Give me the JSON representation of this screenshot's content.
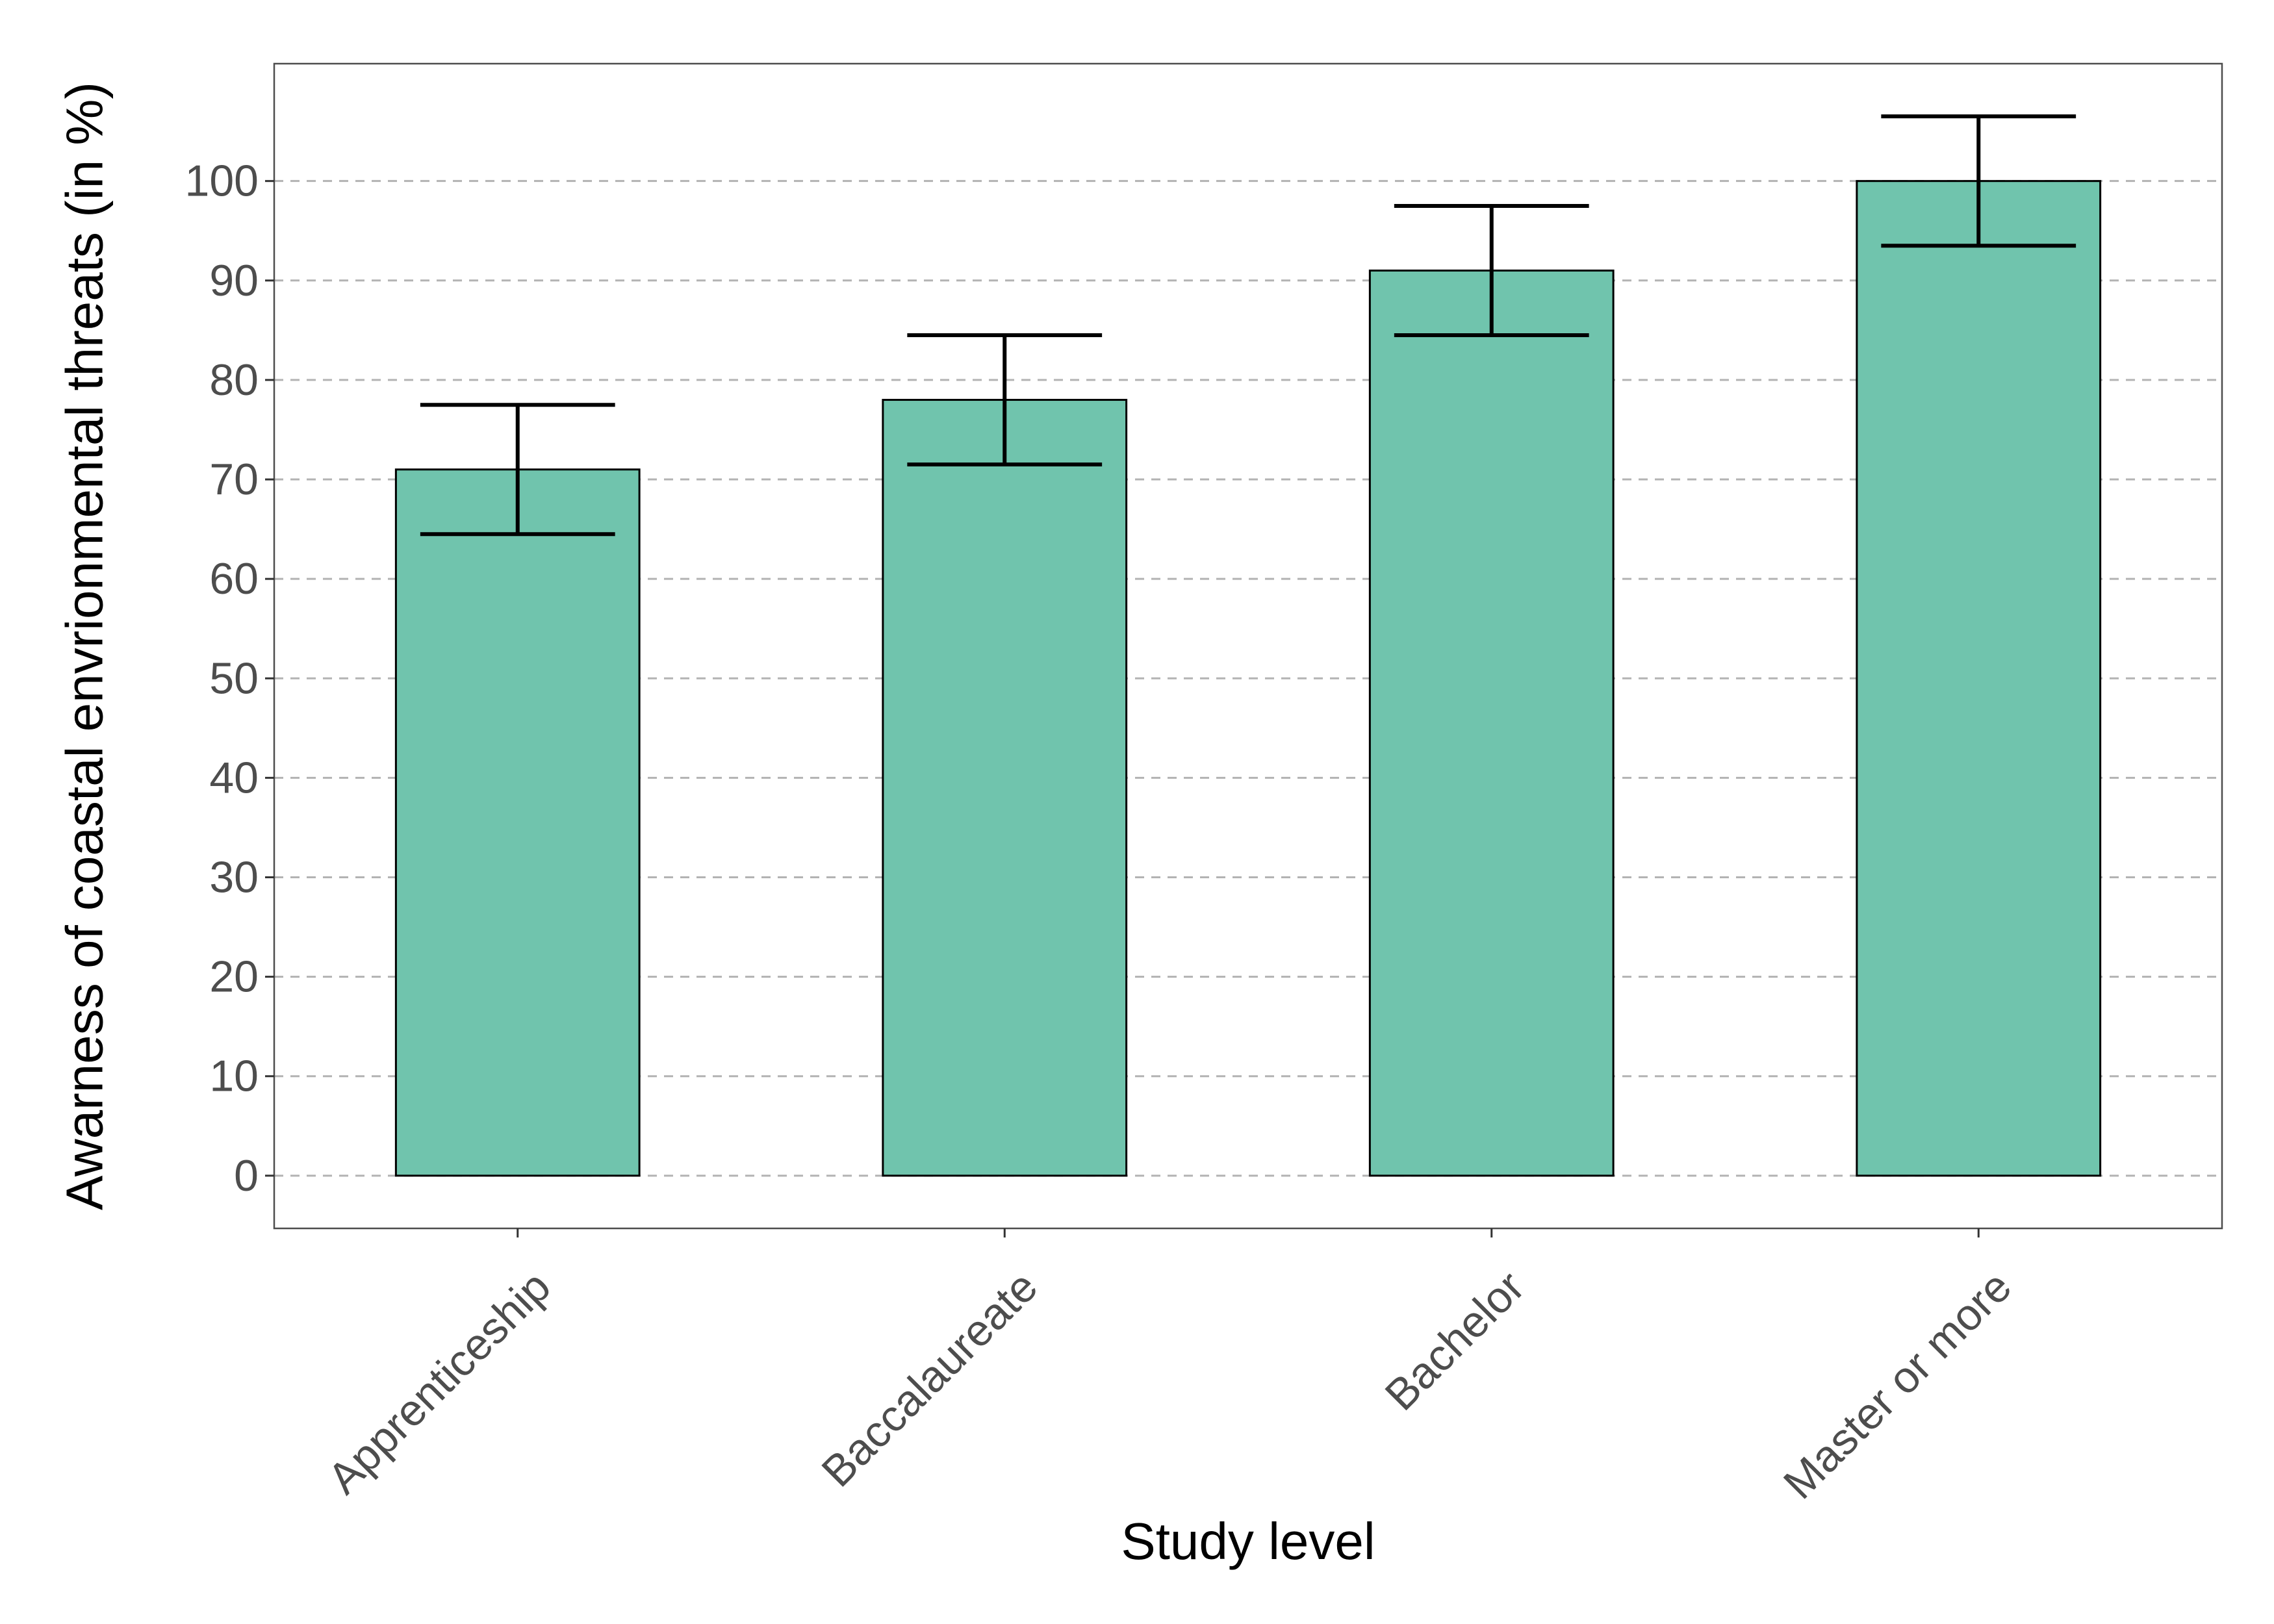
{
  "chart_data": {
    "type": "bar",
    "xlabel": "Study level",
    "ylabel": "Awarness of coastal envrionmental threats (in %)",
    "categories": [
      "Apprenticeship",
      "Baccalaureate",
      "Bachelor",
      "Master or more"
    ],
    "values": [
      71,
      78,
      91,
      100
    ],
    "error_bars": [
      {
        "low": 64.5,
        "high": 77.5
      },
      {
        "low": 71.5,
        "high": 84.5
      },
      {
        "low": 84.5,
        "high": 97.5
      },
      {
        "low": 93.5,
        "high": 106.5
      }
    ],
    "ylim": [
      -5.3,
      111.8
    ],
    "yticks": [
      0,
      10,
      20,
      30,
      40,
      50,
      60,
      70,
      80,
      90,
      100
    ],
    "grid": "horizontal dashed",
    "legend": "none",
    "colors": {
      "bar_fill": "#70c4ad",
      "bar_stroke": "#000000",
      "grid": "#b3b3b3",
      "error_bar": "#000000",
      "panel_border": "#4d4d4d"
    }
  }
}
